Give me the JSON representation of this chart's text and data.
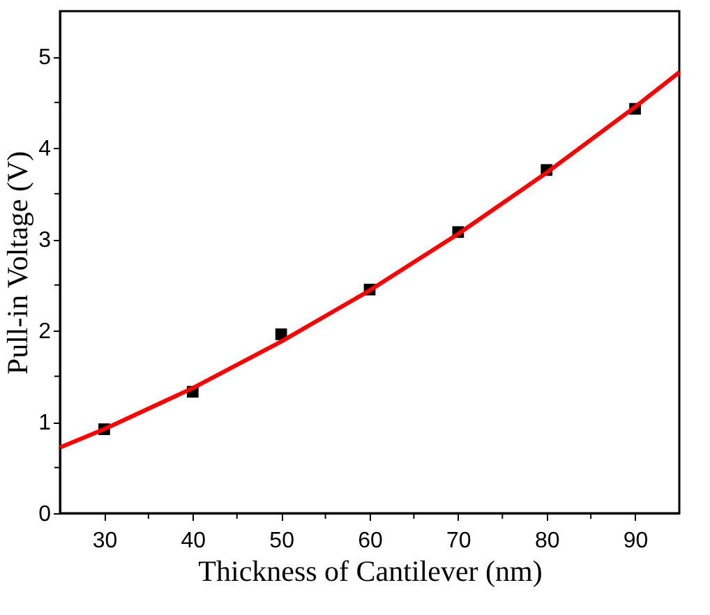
{
  "chart_data": {
    "type": "scatter",
    "xlabel": "Thickness of Cantilever (nm)",
    "ylabel": "Pull-in Voltage (V)",
    "x": [
      30,
      40,
      50,
      60,
      70,
      80,
      90
    ],
    "series": [
      {
        "color": "#000000",
        "marker": "square",
        "values": [
          0.92,
          1.33,
          1.96,
          2.45,
          3.08,
          3.76,
          4.43
        ]
      },
      {
        "type": "line",
        "color": "#ff0000",
        "marker": "none",
        "line_style": "solid",
        "x": [
          25,
          30,
          40,
          50,
          60,
          70,
          80,
          90,
          95
        ],
        "values": [
          0.72,
          0.92,
          1.37,
          1.88,
          2.44,
          3.06,
          3.73,
          4.45,
          4.83
        ]
      }
    ],
    "xlim": [
      25,
      95
    ],
    "ylim": [
      0,
      5.5
    ],
    "xticks": [
      30,
      {
        "value": 35,
        "label": null
      },
      40,
      {
        "value": 45,
        "label": null
      },
      50,
      {
        "value": 55,
        "label": null
      },
      60,
      {
        "value": 65,
        "label": null
      },
      70,
      {
        "value": 75,
        "label": null
      },
      80,
      {
        "value": 85,
        "label": null
      },
      90
    ],
    "yticks": [
      0,
      {
        "value": 0.5,
        "label": null
      },
      1,
      {
        "value": 1.5,
        "label": null
      },
      2,
      {
        "value": 2.5,
        "label": null
      },
      3,
      {
        "value": 3.5,
        "label": null
      },
      4,
      {
        "value": 4.5,
        "label": null
      },
      5
    ],
    "grid": false
  }
}
